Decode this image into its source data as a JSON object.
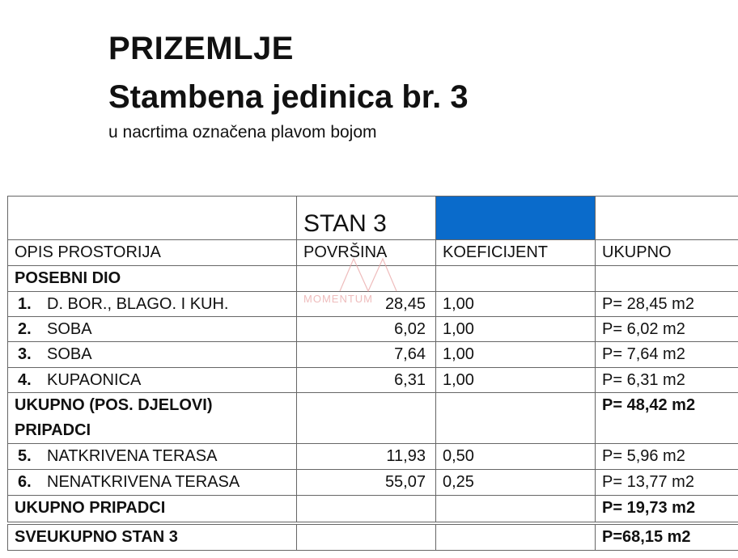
{
  "header": {
    "title": "PRIZEMLJE",
    "unit": "Stambena jedinica br. 3",
    "note": "u nacrtima označena plavom bojom"
  },
  "table": {
    "unit_label": "STAN 3",
    "highlight_color": "#0a6bcb",
    "columns": [
      "OPIS PROSTORIJA",
      "POVRŠINA",
      "KOEFICIJENT",
      "UKUPNO"
    ],
    "section_private": "POSEBNI DIO",
    "rows_private": [
      {
        "no": "1.",
        "name": "D. BOR., BLAGO. I KUH.",
        "area": "28,45",
        "coef": "1,00",
        "total": "P= 28,45 m2"
      },
      {
        "no": "2.",
        "name": "SOBA",
        "area": "6,02",
        "coef": "1,00",
        "total": "P= 6,02 m2"
      },
      {
        "no": "3.",
        "name": "SOBA",
        "area": "7,64",
        "coef": "1,00",
        "total": "P= 7,64 m2"
      },
      {
        "no": "4.",
        "name": "KUPAONICA",
        "area": "6,31",
        "coef": "1,00",
        "total": "P= 6,31 m2"
      }
    ],
    "subtotal_private": {
      "label": "UKUPNO (POS. DJELOVI)",
      "total": "P= 48,42 m2"
    },
    "section_appurtenances": "PRIPADCI",
    "rows_appurtenances": [
      {
        "no": "5.",
        "name": "NATKRIVENA TERASA",
        "area": "11,93",
        "coef": "0,50",
        "total": "P= 5,96 m2"
      },
      {
        "no": "6.",
        "name": "NENATKRIVENA TERASA",
        "area": "55,07",
        "coef": "0,25",
        "total": "P= 13,77 m2"
      }
    ],
    "subtotal_appurtenances": {
      "label": "UKUPNO PRIPADCI",
      "total": "P= 19,73 m2"
    },
    "grand_total": {
      "label": "SVEUKUPNO STAN 3",
      "total": "P=68,15  m2"
    }
  },
  "watermark": "MOMENTUM"
}
